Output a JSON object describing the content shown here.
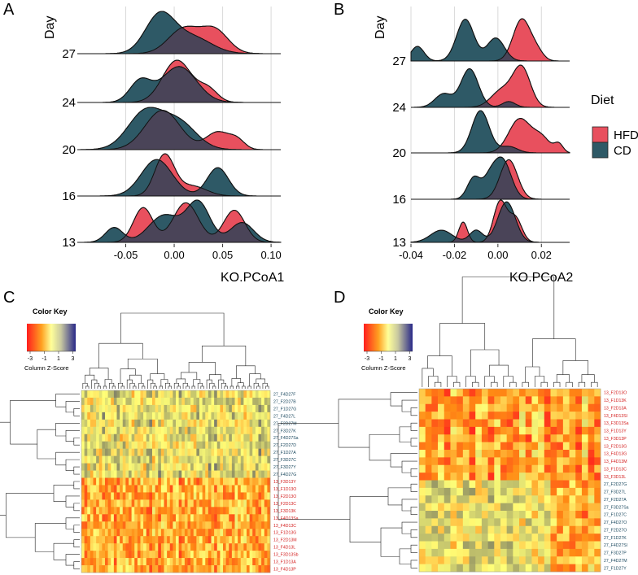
{
  "panels": {
    "A": {
      "label": "A",
      "y_title": "Day",
      "x_title": "KO.PCoA1",
      "x_ticks": [
        "-0.05",
        "0.00",
        "0.05",
        "0.10"
      ],
      "tick_values": [
        -0.05,
        0.0,
        0.05,
        0.1
      ],
      "xlim": [
        -0.1,
        0.11
      ],
      "days": [
        "27",
        "24",
        "20",
        "16",
        "13"
      ]
    },
    "B": {
      "label": "B",
      "y_title": "Day",
      "x_title": "KO.PCoA2",
      "x_ticks": [
        "-0.04",
        "-0.02",
        "0.00",
        "0.02"
      ],
      "tick_values": [
        -0.04,
        -0.02,
        0.0,
        0.02
      ],
      "xlim": [
        -0.04,
        0.033
      ],
      "days": [
        "27",
        "24",
        "20",
        "16",
        "13"
      ]
    },
    "C": {
      "label": "C",
      "color_key_title": "Color Key",
      "color_key_ticks": [
        "-3",
        "-1",
        "1",
        "3"
      ],
      "color_key_label": "Column Z-Score",
      "row_labels": [
        {
          "text": "27_F4D27F",
          "group": "CD"
        },
        {
          "text": "27_F2D27B",
          "group": "CD"
        },
        {
          "text": "27_F1D27G",
          "group": "CD"
        },
        {
          "text": "27_F4D27L",
          "group": "CD"
        },
        {
          "text": "27_F2D27M",
          "group": "CD"
        },
        {
          "text": "27_F3D27K",
          "group": "CD"
        },
        {
          "text": "27_F4D27Sa",
          "group": "CD"
        },
        {
          "text": "27_F2D27D",
          "group": "CD"
        },
        {
          "text": "27_F1D27A",
          "group": "CD"
        },
        {
          "text": "27_F3D27C",
          "group": "CD"
        },
        {
          "text": "27_F3D27Y",
          "group": "CD"
        },
        {
          "text": "27_F4D27G",
          "group": "CD"
        },
        {
          "text": "13_F3D13Y",
          "group": "HFD"
        },
        {
          "text": "13_F1D13O",
          "group": "HFD"
        },
        {
          "text": "13_F2D13O",
          "group": "HFD"
        },
        {
          "text": "13_F2D13C",
          "group": "HFD"
        },
        {
          "text": "13_F3D13K",
          "group": "HFD"
        },
        {
          "text": "13_F4D13Sa",
          "group": "HFD"
        },
        {
          "text": "13_F4D13C",
          "group": "HFD"
        },
        {
          "text": "13_F1D13G",
          "group": "HFD"
        },
        {
          "text": "13_F2D13M",
          "group": "HFD"
        },
        {
          "text": "13_F4D13L",
          "group": "HFD"
        },
        {
          "text": "13_F3D13Sb",
          "group": "HFD"
        },
        {
          "text": "13_F1D13A",
          "group": "HFD"
        },
        {
          "text": "13_F4D13P",
          "group": "HFD"
        }
      ]
    },
    "D": {
      "label": "D",
      "color_key_title": "Color Key",
      "color_key_ticks": [
        "-3",
        "-1",
        "1",
        "3"
      ],
      "color_key_label": "Column Z-Score",
      "row_labels": [
        {
          "text": "13_F2D13O",
          "group": "HFD"
        },
        {
          "text": "13_F1D13K",
          "group": "HFD"
        },
        {
          "text": "13_F2D13A",
          "group": "HFD"
        },
        {
          "text": "13_F4D13Sl",
          "group": "HFD"
        },
        {
          "text": "13_F3D13Sa",
          "group": "HFD"
        },
        {
          "text": "13_F1D13Y",
          "group": "HFD"
        },
        {
          "text": "13_F3D13P",
          "group": "HFD"
        },
        {
          "text": "13_F2D13G",
          "group": "HFD"
        },
        {
          "text": "13_F4D13G",
          "group": "HFD"
        },
        {
          "text": "13_F4D13M",
          "group": "HFD"
        },
        {
          "text": "13_F1D13C",
          "group": "HFD"
        },
        {
          "text": "13_F3D13L",
          "group": "HFD"
        },
        {
          "text": "27_F2D27G",
          "group": "CD"
        },
        {
          "text": "27_F3D27L",
          "group": "CD"
        },
        {
          "text": "27_F2D27A",
          "group": "CD"
        },
        {
          "text": "27_F3D27Sa",
          "group": "CD"
        },
        {
          "text": "27_F1D27C",
          "group": "CD"
        },
        {
          "text": "27_F4D27O",
          "group": "CD"
        },
        {
          "text": "27_F2D27O",
          "group": "CD"
        },
        {
          "text": "27_F1D27K",
          "group": "CD"
        },
        {
          "text": "27_F4D27Sl",
          "group": "CD"
        },
        {
          "text": "27_F3D27P",
          "group": "CD"
        },
        {
          "text": "27_F4D27M",
          "group": "CD"
        },
        {
          "text": "27_F1D27Y",
          "group": "CD"
        }
      ]
    }
  },
  "legend": {
    "title": "Diet",
    "entries": [
      {
        "label": "HFD",
        "color": "#e8505e"
      },
      {
        "label": "CD",
        "color": "#2e5966"
      }
    ]
  },
  "colors": {
    "hfd": "#e8505e",
    "cd": "#2e5966",
    "overlap": "#4a4458",
    "hfd_label": "#d42020",
    "cd_label": "#1c4a60"
  },
  "chart_data": [
    {
      "type": "area",
      "title": "A",
      "xlabel": "KO.PCoA1",
      "ylabel": "Day",
      "categories": [
        "27",
        "24",
        "20",
        "16",
        "13"
      ],
      "xlim": [
        -0.1,
        0.11
      ],
      "series": [
        {
          "name": "HFD",
          "day_components": {
            "27": [
              [
                0.6,
                0.01,
                0.016
              ],
              [
                0.55,
                0.042,
                0.014
              ]
            ],
            "24": [
              [
                1.0,
                0.003,
                0.015
              ],
              [
                0.3,
                0.035,
                0.01
              ]
            ],
            "20": [
              [
                0.9,
                -0.012,
                0.018
              ],
              [
                0.4,
                0.045,
                0.012
              ],
              [
                0.2,
                0.065,
                0.008
              ]
            ],
            "16": [
              [
                1.0,
                -0.01,
                0.01
              ],
              [
                0.25,
                0.018,
                0.015
              ]
            ],
            "13": [
              [
                0.7,
                -0.032,
                0.01
              ],
              [
                0.8,
                0.012,
                0.013
              ],
              [
                0.65,
                0.062,
                0.011
              ]
            ]
          }
        },
        {
          "name": "CD",
          "day_components": {
            "27": [
              [
                0.9,
                -0.015,
                0.015
              ],
              [
                0.4,
                0.018,
                0.02
              ]
            ],
            "24": [
              [
                0.5,
                -0.035,
                0.011
              ],
              [
                0.85,
                0.005,
                0.018
              ]
            ],
            "20": [
              [
                0.85,
                -0.03,
                0.018
              ],
              [
                0.6,
                0.005,
                0.018
              ]
            ],
            "16": [
              [
                0.9,
                -0.018,
                0.016
              ],
              [
                0.7,
                0.045,
                0.011
              ]
            ],
            "13": [
              [
                0.3,
                -0.062,
                0.009
              ],
              [
                0.55,
                -0.01,
                0.016
              ],
              [
                0.8,
                0.025,
                0.012
              ],
              [
                0.4,
                0.07,
                0.012
              ]
            ]
          }
        }
      ]
    },
    {
      "type": "area",
      "title": "B",
      "xlabel": "KO.PCoA2",
      "ylabel": "Day",
      "categories": [
        "27",
        "24",
        "20",
        "16",
        "13"
      ],
      "xlim": [
        -0.04,
        0.033
      ],
      "series": [
        {
          "name": "HFD",
          "day_components": {
            "27": [
              [
                1.0,
                0.011,
                0.004
              ],
              [
                0.2,
                0.018,
                0.003
              ]
            ],
            "24": [
              [
                0.45,
                0.002,
                0.005
              ],
              [
                1.0,
                0.011,
                0.004
              ]
            ],
            "20": [
              [
                0.8,
                0.01,
                0.005
              ],
              [
                0.35,
                0.02,
                0.004
              ],
              [
                0.2,
                0.028,
                0.002
              ]
            ],
            "16": [
              [
                1.0,
                0.005,
                0.004
              ]
            ],
            "13": [
              [
                0.5,
                -0.016,
                0.002
              ],
              [
                1.0,
                0.001,
                0.003
              ],
              [
                0.6,
                0.008,
                0.003
              ]
            ]
          }
        },
        {
          "name": "CD",
          "day_components": {
            "27": [
              [
                0.35,
                -0.037,
                0.003
              ],
              [
                1.0,
                -0.015,
                0.004
              ],
              [
                0.55,
                -0.001,
                0.004
              ]
            ],
            "24": [
              [
                0.35,
                -0.025,
                0.004
              ],
              [
                1.0,
                -0.013,
                0.004
              ],
              [
                0.15,
                0.005,
                0.003
              ]
            ],
            "20": [
              [
                1.0,
                -0.008,
                0.004
              ],
              [
                0.15,
                0.005,
                0.004
              ]
            ],
            "16": [
              [
                0.55,
                -0.011,
                0.003
              ],
              [
                0.4,
                -0.004,
                0.003
              ],
              [
                1.0,
                0.002,
                0.004
              ]
            ],
            "13": [
              [
                0.3,
                -0.026,
                0.005
              ],
              [
                0.3,
                -0.01,
                0.003
              ],
              [
                1.0,
                0.004,
                0.004
              ]
            ]
          }
        }
      ]
    },
    {
      "type": "heatmap",
      "title": "C",
      "color_scale": {
        "min": -3,
        "max": 3,
        "label": "Column Z-Score"
      },
      "rows": 25,
      "columns": 64,
      "values": "cell-level z-scores not legible; approximated"
    },
    {
      "type": "heatmap",
      "title": "D",
      "color_scale": {
        "min": -3,
        "max": 3,
        "label": "Column Z-Score"
      },
      "rows": 24,
      "columns": 29,
      "values": "cell-level z-scores not legible; approximated"
    }
  ]
}
